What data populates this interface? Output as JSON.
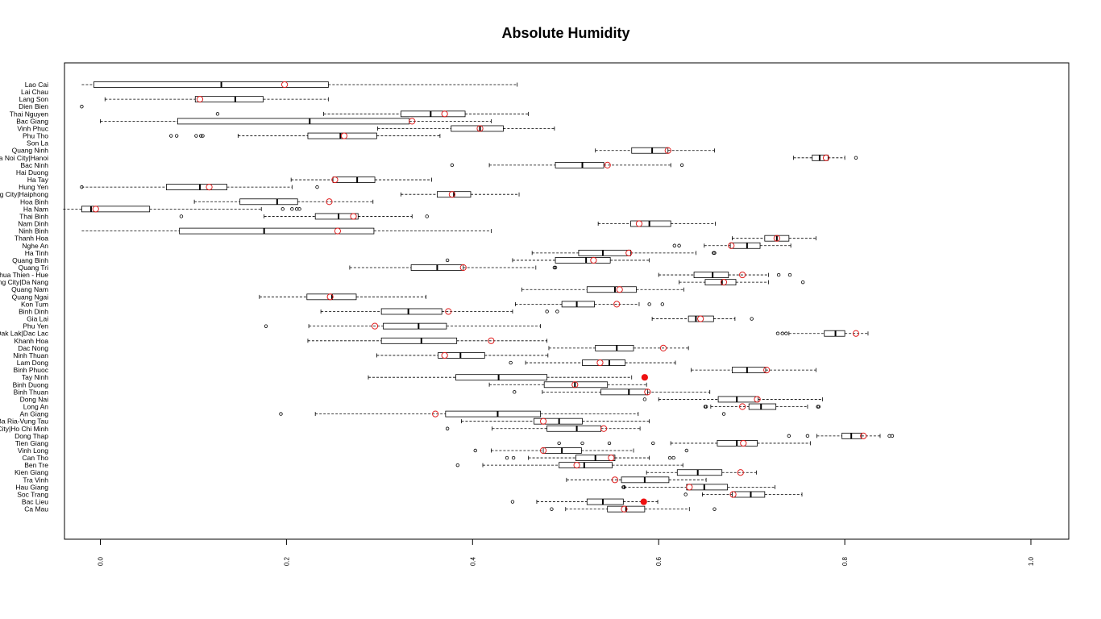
{
  "chart_data": {
    "type": "boxplot",
    "orientation": "horizontal",
    "title": "Absolute Humidity",
    "xlabel": "",
    "ylabel": "",
    "xlim": [
      -0.02,
      1.02
    ],
    "xticks": [
      0.0,
      0.2,
      0.4,
      0.6,
      0.8,
      1.0
    ],
    "xtick_labels": [
      "0.0",
      "0.2",
      "0.4",
      "0.6",
      "0.8",
      "1.0"
    ],
    "grid": false,
    "mean_marker_color": "#e02020",
    "highlight_color": "#ee1111",
    "box_color": "#000000",
    "series": [
      {
        "name": "Lao Cai",
        "whisker_low": -0.02,
        "q1": -0.007,
        "median": 0.13,
        "q3": 0.245,
        "whisker_high": 0.448,
        "mean": 0.198,
        "outliers": []
      },
      {
        "name": "Lai Chau",
        "whisker_low": null,
        "q1": null,
        "median": null,
        "q3": null,
        "whisker_high": null,
        "mean": null,
        "outliers": []
      },
      {
        "name": "Lang Son",
        "whisker_low": 0.005,
        "q1": 0.102,
        "median": 0.145,
        "q3": 0.175,
        "whisker_high": 0.245,
        "mean": 0.107,
        "outliers": []
      },
      {
        "name": "Dien Bien",
        "whisker_low": null,
        "q1": null,
        "median": null,
        "q3": null,
        "whisker_high": null,
        "mean": null,
        "outliers": [
          -0.04
        ]
      },
      {
        "name": "Thai Nguyen",
        "whisker_low": 0.24,
        "q1": 0.323,
        "median": 0.355,
        "q3": 0.392,
        "whisker_high": 0.46,
        "mean": 0.37,
        "outliers": [
          0.126
        ]
      },
      {
        "name": "Bac Giang",
        "whisker_low": 0.0,
        "q1": 0.083,
        "median": 0.225,
        "q3": 0.332,
        "whisker_high": 0.42,
        "mean": 0.335,
        "outliers": []
      },
      {
        "name": "Vinh Phuc",
        "whisker_low": 0.298,
        "q1": 0.377,
        "median": 0.408,
        "q3": 0.433,
        "whisker_high": 0.488,
        "mean": 0.408,
        "outliers": []
      },
      {
        "name": "Phu Tho",
        "whisker_low": 0.148,
        "q1": 0.223,
        "median": 0.258,
        "q3": 0.297,
        "whisker_high": 0.365,
        "mean": 0.262,
        "outliers": [
          0.076,
          0.082,
          0.103,
          0.108,
          0.11
        ]
      },
      {
        "name": "Son La",
        "whisker_low": null,
        "q1": null,
        "median": null,
        "q3": null,
        "whisker_high": null,
        "mean": null,
        "outliers": []
      },
      {
        "name": "Quang Ninh",
        "whisker_low": 0.532,
        "q1": 0.571,
        "median": 0.593,
        "q3": 0.61,
        "whisker_high": 0.66,
        "mean": 0.61,
        "outliers": []
      },
      {
        "name": "Ha Noi City|Hanoi",
        "whisker_low": 0.745,
        "q1": 0.765,
        "median": 0.773,
        "q3": 0.782,
        "whisker_high": 0.8,
        "mean": 0.78,
        "outliers": [
          0.812
        ]
      },
      {
        "name": "Bac Ninh",
        "whisker_low": 0.418,
        "q1": 0.489,
        "median": 0.518,
        "q3": 0.541,
        "whisker_high": 0.613,
        "mean": 0.545,
        "outliers": [
          0.378,
          0.625
        ]
      },
      {
        "name": "Hai Duong",
        "whisker_low": null,
        "q1": null,
        "median": null,
        "q3": null,
        "whisker_high": null,
        "mean": null,
        "outliers": []
      },
      {
        "name": "Ha Tay",
        "whisker_low": 0.205,
        "q1": 0.25,
        "median": 0.276,
        "q3": 0.295,
        "whisker_high": 0.356,
        "mean": 0.252,
        "outliers": []
      },
      {
        "name": "Hung Yen",
        "whisker_low": -0.03,
        "q1": 0.071,
        "median": 0.107,
        "q3": 0.136,
        "whisker_high": 0.206,
        "mean": 0.117,
        "outliers": [
          -0.042,
          0.233
        ]
      },
      {
        "name": "Hai Phong City|Haiphong",
        "whisker_low": 0.323,
        "q1": 0.362,
        "median": 0.38,
        "q3": 0.398,
        "whisker_high": 0.45,
        "mean": 0.378,
        "outliers": []
      },
      {
        "name": "Hoa Binh",
        "whisker_low": 0.101,
        "q1": 0.15,
        "median": 0.19,
        "q3": 0.212,
        "whisker_high": 0.293,
        "mean": 0.246,
        "outliers": []
      },
      {
        "name": "Ha Nam",
        "whisker_low": -0.04,
        "q1": -0.04,
        "median": -0.01,
        "q3": 0.053,
        "whisker_high": 0.173,
        "mean": -0.005,
        "outliers": [
          0.196,
          0.206,
          0.211,
          0.214
        ]
      },
      {
        "name": "Thai Binh",
        "whisker_low": 0.176,
        "q1": 0.231,
        "median": 0.256,
        "q3": 0.277,
        "whisker_high": 0.335,
        "mean": 0.272,
        "outliers": [
          0.087,
          0.351
        ]
      },
      {
        "name": "Nam Dinh",
        "whisker_low": 0.535,
        "q1": 0.57,
        "median": 0.59,
        "q3": 0.613,
        "whisker_high": 0.661,
        "mean": 0.579,
        "outliers": []
      },
      {
        "name": "Ninh Binh",
        "whisker_low": -0.025,
        "q1": 0.085,
        "median": 0.176,
        "q3": 0.294,
        "whisker_high": 0.42,
        "mean": 0.255,
        "outliers": []
      },
      {
        "name": "Thanh Hoa",
        "whisker_low": 0.679,
        "q1": 0.714,
        "median": 0.727,
        "q3": 0.74,
        "whisker_high": 0.769,
        "mean": 0.727,
        "outliers": []
      },
      {
        "name": "Nghe An",
        "whisker_low": 0.649,
        "q1": 0.677,
        "median": 0.695,
        "q3": 0.709,
        "whisker_high": 0.742,
        "mean": 0.678,
        "outliers": [
          0.617,
          0.622
        ]
      },
      {
        "name": "Ha Tinh",
        "whisker_low": 0.464,
        "q1": 0.514,
        "median": 0.54,
        "q3": 0.57,
        "whisker_high": 0.64,
        "mean": 0.568,
        "outliers": [
          0.659,
          0.66
        ]
      },
      {
        "name": "Quang Binh",
        "whisker_low": 0.443,
        "q1": 0.489,
        "median": 0.522,
        "q3": 0.548,
        "whisker_high": 0.59,
        "mean": 0.53,
        "outliers": [
          0.373
        ]
      },
      {
        "name": "Quang Tri",
        "whisker_low": 0.268,
        "q1": 0.334,
        "median": 0.362,
        "q3": 0.39,
        "whisker_high": 0.468,
        "mean": 0.39,
        "outliers": [
          0.488,
          0.489
        ]
      },
      {
        "name": "Thua Thien - Hue",
        "whisker_low": 0.6,
        "q1": 0.638,
        "median": 0.658,
        "q3": 0.675,
        "whisker_high": 0.718,
        "mean": 0.69,
        "outliers": [
          0.729,
          0.741
        ]
      },
      {
        "name": "Da Nang City|Da Nang",
        "whisker_low": 0.622,
        "q1": 0.65,
        "median": 0.668,
        "q3": 0.683,
        "whisker_high": 0.718,
        "mean": 0.67,
        "outliers": [
          0.755
        ]
      },
      {
        "name": "Quang Nam",
        "whisker_low": 0.453,
        "q1": 0.523,
        "median": 0.553,
        "q3": 0.576,
        "whisker_high": 0.627,
        "mean": 0.558,
        "outliers": []
      },
      {
        "name": "Quang Ngai",
        "whisker_low": 0.171,
        "q1": 0.222,
        "median": 0.249,
        "q3": 0.275,
        "whisker_high": 0.35,
        "mean": 0.247,
        "outliers": []
      },
      {
        "name": "Kon Tum",
        "whisker_low": 0.446,
        "q1": 0.496,
        "median": 0.512,
        "q3": 0.531,
        "whisker_high": 0.579,
        "mean": 0.555,
        "outliers": [
          0.59,
          0.604
        ]
      },
      {
        "name": "Binh Dinh",
        "whisker_low": 0.237,
        "q1": 0.302,
        "median": 0.331,
        "q3": 0.367,
        "whisker_high": 0.443,
        "mean": 0.374,
        "outliers": [
          0.48,
          0.491
        ]
      },
      {
        "name": "Gia Lai",
        "whisker_low": 0.593,
        "q1": 0.632,
        "median": 0.64,
        "q3": 0.659,
        "whisker_high": 0.682,
        "mean": 0.645,
        "outliers": [
          0.7
        ]
      },
      {
        "name": "Phu Yen",
        "whisker_low": 0.224,
        "q1": 0.304,
        "median": 0.342,
        "q3": 0.372,
        "whisker_high": 0.473,
        "mean": 0.295,
        "outliers": [
          0.178
        ]
      },
      {
        "name": "Dak Lak|Dac Lac",
        "whisker_low": 0.74,
        "q1": 0.778,
        "median": 0.79,
        "q3": 0.8,
        "whisker_high": 0.825,
        "mean": 0.812,
        "outliers": [
          0.728,
          0.733,
          0.737
        ]
      },
      {
        "name": "Khanh Hoa",
        "whisker_low": 0.223,
        "q1": 0.302,
        "median": 0.345,
        "q3": 0.383,
        "whisker_high": 0.48,
        "mean": 0.42,
        "outliers": []
      },
      {
        "name": "Dac Nong",
        "whisker_low": 0.482,
        "q1": 0.532,
        "median": 0.555,
        "q3": 0.573,
        "whisker_high": 0.632,
        "mean": 0.605,
        "outliers": []
      },
      {
        "name": "Ninh Thuan",
        "whisker_low": 0.297,
        "q1": 0.363,
        "median": 0.387,
        "q3": 0.413,
        "whisker_high": 0.481,
        "mean": 0.37,
        "outliers": []
      },
      {
        "name": "Lam Dong",
        "whisker_low": 0.457,
        "q1": 0.518,
        "median": 0.547,
        "q3": 0.564,
        "whisker_high": 0.618,
        "mean": 0.537,
        "outliers": [
          0.441
        ]
      },
      {
        "name": "Binh Phuoc",
        "whisker_low": 0.635,
        "q1": 0.679,
        "median": 0.695,
        "q3": 0.715,
        "whisker_high": 0.769,
        "mean": 0.716,
        "outliers": []
      },
      {
        "name": "Tay Ninh",
        "whisker_low": 0.288,
        "q1": 0.382,
        "median": 0.428,
        "q3": 0.48,
        "whisker_high": 0.571,
        "mean": null,
        "outliers": [],
        "highlight": 0.585
      },
      {
        "name": "Binh Duong",
        "whisker_low": 0.418,
        "q1": 0.477,
        "median": 0.51,
        "q3": 0.545,
        "whisker_high": 0.587,
        "mean": 0.51,
        "outliers": []
      },
      {
        "name": "Binh Thuan",
        "whisker_low": 0.475,
        "q1": 0.538,
        "median": 0.568,
        "q3": 0.588,
        "whisker_high": 0.655,
        "mean": 0.588,
        "outliers": [
          0.445
        ]
      },
      {
        "name": "Dong Nai",
        "whisker_low": 0.6,
        "q1": 0.664,
        "median": 0.684,
        "q3": 0.707,
        "whisker_high": 0.776,
        "mean": 0.706,
        "outliers": [
          0.585
        ]
      },
      {
        "name": "Long An",
        "whisker_low": 0.656,
        "q1": 0.697,
        "median": 0.71,
        "q3": 0.726,
        "whisker_high": 0.76,
        "mean": 0.69,
        "outliers": [
          0.65,
          0.651,
          0.771,
          0.772
        ]
      },
      {
        "name": "An Giang",
        "whisker_low": 0.231,
        "q1": 0.371,
        "median": 0.427,
        "q3": 0.473,
        "whisker_high": 0.578,
        "mean": 0.36,
        "outliers": [
          0.194,
          0.67
        ]
      },
      {
        "name": "Ba Ria-Vung Tau",
        "whisker_low": 0.388,
        "q1": 0.466,
        "median": 0.493,
        "q3": 0.518,
        "whisker_high": 0.59,
        "mean": 0.476,
        "outliers": []
      },
      {
        "name": "Ho Chi Minh City|Ho Chi Minh",
        "whisker_low": 0.421,
        "q1": 0.48,
        "median": 0.512,
        "q3": 0.538,
        "whisker_high": 0.58,
        "mean": 0.541,
        "outliers": [
          0.373
        ]
      },
      {
        "name": "Dong Thap",
        "whisker_low": 0.77,
        "q1": 0.797,
        "median": 0.807,
        "q3": 0.818,
        "whisker_high": 0.838,
        "mean": 0.82,
        "outliers": [
          0.74,
          0.76,
          0.848,
          0.851
        ]
      },
      {
        "name": "Tien Giang",
        "whisker_low": 0.613,
        "q1": 0.663,
        "median": 0.684,
        "q3": 0.706,
        "whisker_high": 0.763,
        "mean": 0.691,
        "outliers": [
          0.493,
          0.518,
          0.547,
          0.594
        ]
      },
      {
        "name": "Vinh Long",
        "whisker_low": 0.42,
        "q1": 0.476,
        "median": 0.496,
        "q3": 0.517,
        "whisker_high": 0.573,
        "mean": 0.476,
        "outliers": [
          0.403,
          0.63
        ]
      },
      {
        "name": "Can Tho",
        "whisker_low": 0.46,
        "q1": 0.511,
        "median": 0.532,
        "q3": 0.553,
        "whisker_high": 0.59,
        "mean": 0.549,
        "outliers": [
          0.437,
          0.444,
          0.612,
          0.616
        ]
      },
      {
        "name": "Ben Tre",
        "whisker_low": 0.411,
        "q1": 0.493,
        "median": 0.52,
        "q3": 0.55,
        "whisker_high": 0.626,
        "mean": 0.512,
        "outliers": [
          0.384
        ]
      },
      {
        "name": "Kien Giang",
        "whisker_low": 0.587,
        "q1": 0.62,
        "median": 0.642,
        "q3": 0.668,
        "whisker_high": 0.705,
        "mean": 0.688,
        "outliers": []
      },
      {
        "name": "Tra Vinh",
        "whisker_low": 0.501,
        "q1": 0.56,
        "median": 0.585,
        "q3": 0.611,
        "whisker_high": 0.651,
        "mean": 0.553,
        "outliers": []
      },
      {
        "name": "Hau Giang",
        "whisker_low": 0.563,
        "q1": 0.63,
        "median": 0.649,
        "q3": 0.674,
        "whisker_high": 0.725,
        "mean": 0.633,
        "outliers": [
          0.562,
          0.563
        ]
      },
      {
        "name": "Soc Trang",
        "whisker_low": 0.647,
        "q1": 0.679,
        "median": 0.699,
        "q3": 0.714,
        "whisker_high": 0.754,
        "mean": 0.68,
        "outliers": [
          0.629
        ]
      },
      {
        "name": "Bac Lieu",
        "whisker_low": 0.469,
        "q1": 0.523,
        "median": 0.54,
        "q3": 0.562,
        "whisker_high": 0.599,
        "mean": null,
        "outliers": [
          0.443
        ],
        "highlight": 0.584
      },
      {
        "name": "Ca Mau",
        "whisker_low": 0.5,
        "q1": 0.545,
        "median": 0.565,
        "q3": 0.585,
        "whisker_high": 0.633,
        "mean": 0.563,
        "outliers": [
          0.485,
          0.66
        ]
      }
    ]
  }
}
